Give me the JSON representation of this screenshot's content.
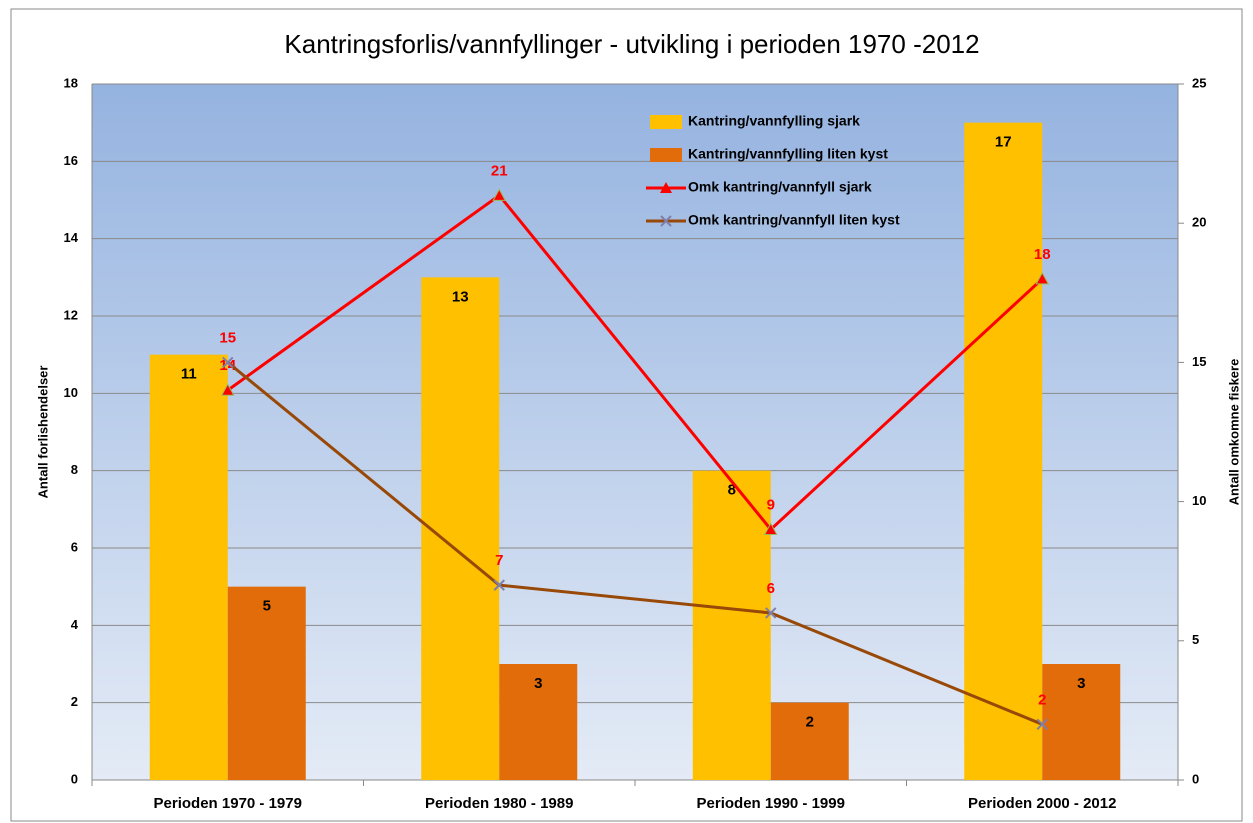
{
  "chart_data": {
    "type": "bar",
    "title": "Kantringsforlis/vannfyllinger - utvikling i perioden 1970 -2012",
    "ylabel": "Antall forlishendelser",
    "y2label": "Antall omkomne fiskere",
    "categories": [
      "Perioden 1970 - 1979",
      "Perioden 1980 - 1989",
      "Perioden 1990 - 1999",
      "Perioden 2000 - 2012"
    ],
    "series": [
      {
        "name": "Kantring/vannfylling sjark",
        "type": "bar",
        "color": "#ffc000",
        "values": [
          11,
          13,
          8,
          17
        ]
      },
      {
        "name": "Kantring/vannfylling liten kyst",
        "type": "bar",
        "color": "#e36c0a",
        "values": [
          5,
          3,
          2,
          3
        ]
      },
      {
        "name": "Omk kantring/vannfyll sjark",
        "type": "line",
        "axis": "y2",
        "color": "#ff0000",
        "values": [
          14,
          21,
          9,
          18
        ]
      },
      {
        "name": "Omk kantring/vannfyll liten kyst",
        "type": "line",
        "axis": "y2",
        "color": "#984807",
        "values": [
          15,
          7,
          6,
          2
        ]
      }
    ],
    "ylim": [
      0,
      18
    ],
    "yticks": [
      0,
      2,
      4,
      6,
      8,
      10,
      12,
      14,
      16,
      18
    ],
    "y2lim": [
      0,
      25
    ],
    "y2ticks": [
      0,
      5,
      10,
      15,
      20,
      25
    ],
    "grid": true,
    "legend": "top"
  }
}
